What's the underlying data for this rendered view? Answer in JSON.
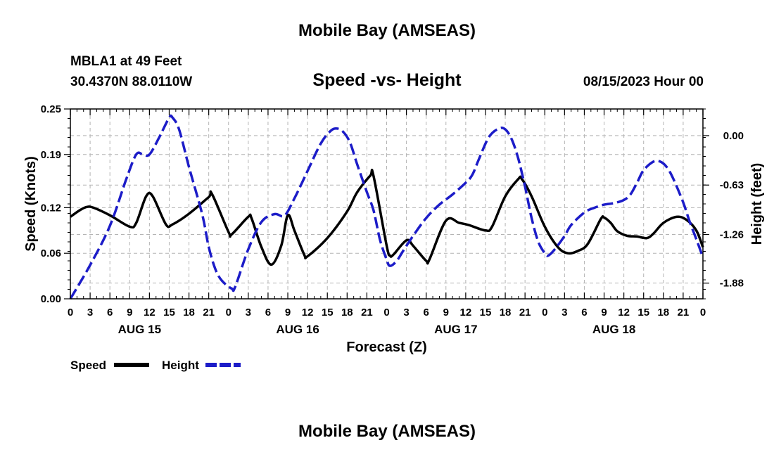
{
  "header": {
    "title": "Mobile Bay (AMSEAS)",
    "station": "MBLA1 at 49 Feet",
    "coords": "30.4370N  88.0110W",
    "subtitle": "Speed -vs- Height",
    "datetime": "08/15/2023 Hour 00"
  },
  "footer": {
    "title": "Mobile Bay (AMSEAS)"
  },
  "chart_data": {
    "type": "line",
    "xlabel": "Forecast (Z)",
    "ylabel_left": "Speed (Knots)",
    "ylabel_right": "Height (feet)",
    "x_range_hours": [
      0,
      96
    ],
    "x_tick_labels": [
      "0",
      "3",
      "6",
      "9",
      "12",
      "15",
      "18",
      "21",
      "0",
      "3",
      "6",
      "9",
      "12",
      "15",
      "18",
      "21",
      "0",
      "3",
      "6",
      "9",
      "12",
      "15",
      "18",
      "21",
      "0",
      "3",
      "6",
      "9",
      "12",
      "15",
      "18",
      "21",
      "0"
    ],
    "day_labels": [
      {
        "label": "AUG 15",
        "center_hour": 10.5
      },
      {
        "label": "AUG 16",
        "center_hour": 34.5
      },
      {
        "label": "AUG 17",
        "center_hour": 58.5
      },
      {
        "label": "AUG 18",
        "center_hour": 82.5
      }
    ],
    "y_left": {
      "ticks": [
        0.0,
        0.06,
        0.12,
        0.19,
        0.25
      ],
      "tick_labels": [
        "0.00",
        "0.06",
        "0.12",
        "0.19",
        "0.25"
      ],
      "range": [
        0,
        0.25
      ]
    },
    "y_right": {
      "ticks": [
        0.0,
        -0.63,
        -1.26,
        -1.88
      ],
      "tick_labels": [
        "0.00",
        "-0.63",
        "-1.26",
        "-1.88"
      ],
      "range": [
        -2.08,
        0.34
      ]
    },
    "legend": [
      {
        "name": "Speed",
        "color": "#000000",
        "style": "solid"
      },
      {
        "name": "Height",
        "color": "#1c1cc8",
        "style": "dashed"
      }
    ],
    "series": [
      {
        "name": "Speed",
        "axis": "left",
        "color": "#000000",
        "dash": "",
        "points": [
          [
            0,
            0.108
          ],
          [
            1.5,
            0.117
          ],
          [
            2.5,
            0.121
          ],
          [
            3.5,
            0.12
          ],
          [
            6,
            0.11
          ],
          [
            9,
            0.095
          ],
          [
            10,
            0.1
          ],
          [
            11.5,
            0.135
          ],
          [
            12.5,
            0.135
          ],
          [
            14.5,
            0.098
          ],
          [
            15.5,
            0.098
          ],
          [
            18,
            0.112
          ],
          [
            21,
            0.134
          ],
          [
            21.5,
            0.138
          ],
          [
            24,
            0.088
          ],
          [
            24.5,
            0.085
          ],
          [
            27,
            0.108
          ],
          [
            27.5,
            0.106
          ],
          [
            29,
            0.068
          ],
          [
            30.5,
            0.045
          ],
          [
            32,
            0.07
          ],
          [
            33,
            0.11
          ],
          [
            34,
            0.09
          ],
          [
            35.5,
            0.058
          ],
          [
            36,
            0.056
          ],
          [
            39,
            0.08
          ],
          [
            42,
            0.115
          ],
          [
            43.5,
            0.14
          ],
          [
            45.5,
            0.162
          ],
          [
            46,
            0.162
          ],
          [
            48,
            0.07
          ],
          [
            48.5,
            0.057
          ],
          [
            49,
            0.058
          ],
          [
            51,
            0.077
          ],
          [
            52,
            0.07
          ],
          [
            54,
            0.05
          ],
          [
            54.5,
            0.052
          ],
          [
            57,
            0.103
          ],
          [
            59,
            0.1
          ],
          [
            60.5,
            0.097
          ],
          [
            63,
            0.09
          ],
          [
            64,
            0.095
          ],
          [
            66,
            0.135
          ],
          [
            68,
            0.158
          ],
          [
            68.5,
            0.158
          ],
          [
            70,
            0.135
          ],
          [
            72,
            0.095
          ],
          [
            74,
            0.068
          ],
          [
            75.5,
            0.06
          ],
          [
            77,
            0.063
          ],
          [
            78.5,
            0.072
          ],
          [
            80.5,
            0.105
          ],
          [
            81,
            0.107
          ],
          [
            82,
            0.1
          ],
          [
            83,
            0.089
          ],
          [
            84.5,
            0.083
          ],
          [
            86,
            0.082
          ],
          [
            87.5,
            0.08
          ],
          [
            88.5,
            0.086
          ],
          [
            90,
            0.1
          ],
          [
            92,
            0.108
          ],
          [
            93.5,
            0.104
          ],
          [
            95,
            0.09
          ],
          [
            96,
            0.068
          ]
        ]
      },
      {
        "name": "Height",
        "axis": "right",
        "color": "#1c1cc8",
        "dash": "16,6",
        "points": [
          [
            0,
            -2.08
          ],
          [
            3,
            -1.65
          ],
          [
            6,
            -1.15
          ],
          [
            8.5,
            -0.55
          ],
          [
            10,
            -0.24
          ],
          [
            11,
            -0.24
          ],
          [
            12,
            -0.24
          ],
          [
            13.5,
            -0.02
          ],
          [
            15,
            0.23
          ],
          [
            15.5,
            0.23
          ],
          [
            16.5,
            0.08
          ],
          [
            18,
            -0.4
          ],
          [
            20,
            -1.0
          ],
          [
            21,
            -1.42
          ],
          [
            22,
            -1.7
          ],
          [
            23,
            -1.85
          ],
          [
            24.5,
            -1.95
          ],
          [
            25,
            -1.93
          ],
          [
            27,
            -1.45
          ],
          [
            29,
            -1.1
          ],
          [
            31,
            -1.0
          ],
          [
            32.5,
            -1.02
          ],
          [
            34,
            -0.8
          ],
          [
            36,
            -0.45
          ],
          [
            38,
            -0.1
          ],
          [
            39.5,
            0.06
          ],
          [
            40.5,
            0.09
          ],
          [
            41.5,
            0.04
          ],
          [
            42.5,
            -0.1
          ],
          [
            43.5,
            -0.36
          ],
          [
            45,
            -0.72
          ],
          [
            46,
            -0.95
          ],
          [
            47,
            -1.33
          ],
          [
            48,
            -1.58
          ],
          [
            48.5,
            -1.66
          ],
          [
            49.5,
            -1.6
          ],
          [
            50.5,
            -1.47
          ],
          [
            52,
            -1.28
          ],
          [
            54,
            -1.05
          ],
          [
            56,
            -0.88
          ],
          [
            58,
            -0.75
          ],
          [
            60,
            -0.6
          ],
          [
            61,
            -0.5
          ],
          [
            62,
            -0.3
          ],
          [
            63.5,
            -0.02
          ],
          [
            65,
            0.09
          ],
          [
            66,
            0.08
          ],
          [
            67,
            -0.05
          ],
          [
            68,
            -0.3
          ],
          [
            69,
            -0.65
          ],
          [
            70,
            -1.05
          ],
          [
            71,
            -1.35
          ],
          [
            72,
            -1.5
          ],
          [
            72.5,
            -1.53
          ],
          [
            73.5,
            -1.45
          ],
          [
            75,
            -1.28
          ],
          [
            76,
            -1.14
          ],
          [
            78,
            -0.98
          ],
          [
            79.5,
            -0.92
          ],
          [
            81,
            -0.88
          ],
          [
            82.5,
            -0.86
          ],
          [
            84,
            -0.82
          ],
          [
            85,
            -0.75
          ],
          [
            86,
            -0.6
          ],
          [
            87,
            -0.44
          ],
          [
            88.5,
            -0.33
          ],
          [
            89.5,
            -0.33
          ],
          [
            90.5,
            -0.4
          ],
          [
            91.5,
            -0.55
          ],
          [
            93,
            -0.85
          ],
          [
            94,
            -1.1
          ],
          [
            95,
            -1.32
          ],
          [
            96,
            -1.55
          ]
        ]
      }
    ]
  }
}
